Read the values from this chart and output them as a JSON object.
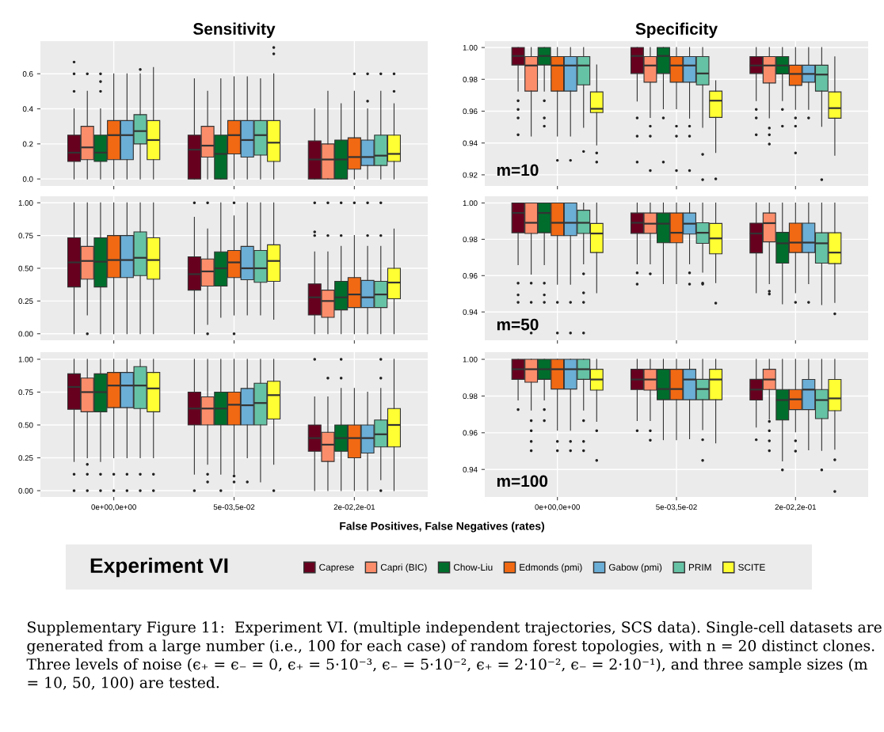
{
  "chart_data": [
    {
      "type": "box",
      "title": "Sensitivity",
      "categories": [
        null,
        null,
        null
      ],
      "tick_labels": "y",
      "grid": true,
      "ylim": [
        -0.04,
        0.786
      ],
      "yticks": [
        {
          "value": 0,
          "label": "0.0"
        },
        {
          "value": 0.2,
          "label": "0.2"
        },
        {
          "value": 0.4,
          "label": "0.4"
        },
        {
          "value": 0.6,
          "label": "0.6"
        }
      ],
      "series": [
        {
          "color": "#67001f",
          "boxes": [
            {
              "low": 0,
              "q1": 0.1,
              "median": 0.15,
              "q3": 0.25,
              "high": 0.4,
              "outliers": [
                0.5,
                0.6,
                0.667
              ]
            },
            {
              "low": 0,
              "q1": 0,
              "median": 0.167,
              "q3": 0.25,
              "high": 0.571
            },
            {
              "low": 0,
              "q1": 0,
              "median": 0.111,
              "q3": 0.217,
              "high": 0.4
            }
          ]
        },
        {
          "color": "#fc8d6b",
          "boxes": [
            {
              "low": 0,
              "q1": 0.11,
              "median": 0.18,
              "q3": 0.3,
              "high": 0.5,
              "outliers": [
                0.6
              ]
            },
            {
              "low": 0,
              "q1": 0.125,
              "median": 0.19,
              "q3": 0.3,
              "high": 0.5
            },
            {
              "low": 0,
              "q1": 0,
              "median": 0.111,
              "q3": 0.2,
              "high": 0.5
            }
          ]
        },
        {
          "color": "#006d2c",
          "boxes": [
            {
              "low": 0,
              "q1": 0.1,
              "median": 0.15,
              "q3": 0.25,
              "high": 0.4,
              "outliers": [
                0.5,
                0.556,
                0.6
              ]
            },
            {
              "low": 0,
              "q1": 0,
              "median": 0.143,
              "q3": 0.25,
              "high": 0.571
            },
            {
              "low": 0,
              "q1": 0,
              "median": 0.111,
              "q3": 0.222,
              "high": 0.429
            }
          ]
        },
        {
          "color": "#f16913",
          "boxes": [
            {
              "low": 0,
              "q1": 0.11,
              "median": 0.25,
              "q3": 0.333,
              "high": 0.6
            },
            {
              "low": 0,
              "q1": 0.143,
              "median": 0.25,
              "q3": 0.333,
              "high": 0.583
            },
            {
              "low": 0,
              "q1": 0.056,
              "median": 0.125,
              "q3": 0.235,
              "high": 0.5,
              "outliers": [
                0.6
              ]
            }
          ]
        },
        {
          "color": "#6baed6",
          "boxes": [
            {
              "low": 0,
              "q1": 0.11,
              "median": 0.25,
              "q3": 0.333,
              "high": 0.6
            },
            {
              "low": 0,
              "q1": 0.125,
              "median": 0.222,
              "q3": 0.333,
              "high": 0.583
            },
            {
              "low": 0,
              "q1": 0.077,
              "median": 0.125,
              "q3": 0.222,
              "high": 0.4,
              "outliers": [
                0.444,
                0.6
              ]
            }
          ]
        },
        {
          "color": "#66c2a4",
          "boxes": [
            {
              "low": 0,
              "q1": 0.2,
              "median": 0.273,
              "q3": 0.367,
              "high": 0.6,
              "outliers": [
                0.625
              ]
            },
            {
              "low": 0,
              "q1": 0.136,
              "median": 0.25,
              "q3": 0.333,
              "high": 0.571
            },
            {
              "low": 0,
              "q1": 0.077,
              "median": 0.133,
              "q3": 0.25,
              "high": 0.5,
              "outliers": [
                0.6
              ]
            }
          ]
        },
        {
          "color": "#ffff33",
          "boxes": [
            {
              "low": 0,
              "q1": 0.11,
              "median": 0.222,
              "q3": 0.333,
              "high": 0.636
            },
            {
              "low": 0,
              "q1": 0.1,
              "median": 0.207,
              "q3": 0.333,
              "high": 0.6,
              "outliers": [
                0.714,
                0.75
              ]
            },
            {
              "low": 0,
              "q1": 0.1,
              "median": 0.143,
              "q3": 0.25,
              "high": 0.429,
              "outliers": [
                0.5,
                0.6
              ]
            }
          ]
        }
      ]
    },
    {
      "type": "box",
      "title": "Specificity",
      "annotations": [
        "m=10"
      ],
      "categories": [
        null,
        null,
        null
      ],
      "tick_labels": "y",
      "grid": true,
      "ylim": [
        0.913,
        1.004
      ],
      "yticks": [
        {
          "value": 0.92,
          "label": "0.92"
        },
        {
          "value": 0.94,
          "label": "0.94"
        },
        {
          "value": 0.96,
          "label": "0.96"
        },
        {
          "value": 0.98,
          "label": "0.98"
        },
        {
          "value": 1,
          "label": "1.00"
        }
      ],
      "series": [
        {
          "color": "#67001f",
          "boxes": [
            {
              "low": 0.9726,
              "q1": 0.989,
              "median": 0.9947,
              "q3": 1,
              "high": 1,
              "outliers": [
                0.9666,
                0.9611,
                0.9558,
                0.9452
              ]
            },
            {
              "low": 0.9664,
              "q1": 0.9837,
              "median": 0.9947,
              "q3": 1,
              "high": 1,
              "outliers": [
                0.9558,
                0.9443,
                0.928
              ]
            },
            {
              "low": 0.9666,
              "q1": 0.9837,
              "median": 0.9887,
              "q3": 0.9943,
              "high": 1,
              "outliers": [
                0.9611,
                0.9558,
                0.9452
              ]
            }
          ]
        },
        {
          "color": "#fc8d6b",
          "boxes": [
            {
              "low": 0.9443,
              "q1": 0.9726,
              "median": 0.9887,
              "q3": 0.9943,
              "high": 1
            },
            {
              "low": 0.9561,
              "q1": 0.9782,
              "median": 0.9887,
              "q3": 0.9943,
              "high": 1,
              "outliers": [
                0.9506,
                0.9443,
                0.9227
              ]
            },
            {
              "low": 0.9558,
              "q1": 0.9777,
              "median": 0.9887,
              "q3": 0.9943,
              "high": 1,
              "outliers": [
                0.9494,
                0.9452,
                0.9394
              ]
            }
          ]
        },
        {
          "color": "#006d2c",
          "boxes": [
            {
              "low": 0.9726,
              "q1": 0.989,
              "median": 0.9947,
              "q3": 1,
              "high": 1,
              "outliers": [
                0.9666,
                0.9558,
                0.9506
              ]
            },
            {
              "low": 0.9615,
              "q1": 0.9837,
              "median": 0.9947,
              "q3": 1,
              "high": 1,
              "outliers": [
                0.9558,
                0.928
              ]
            },
            {
              "low": 0.9666,
              "q1": 0.9834,
              "median": 0.9887,
              "q3": 0.9943,
              "high": 1,
              "outliers": [
                0.9611,
                0.9506
              ]
            }
          ]
        },
        {
          "color": "#f16913",
          "boxes": [
            {
              "low": 0.9443,
              "q1": 0.9726,
              "median": 0.9887,
              "q3": 0.9943,
              "high": 1,
              "outliers": [
                0.9291
              ]
            },
            {
              "low": 0.9615,
              "q1": 0.9782,
              "median": 0.9887,
              "q3": 0.9943,
              "high": 1,
              "outliers": [
                0.9506,
                0.9443,
                0.9227
              ]
            },
            {
              "low": 0.9611,
              "q1": 0.9762,
              "median": 0.9834,
              "q3": 0.9889,
              "high": 1,
              "outliers": [
                0.9558,
                0.9506,
                0.9338
              ]
            }
          ]
        },
        {
          "color": "#6baed6",
          "boxes": [
            {
              "low": 0.9443,
              "q1": 0.9726,
              "median": 0.9887,
              "q3": 0.9943,
              "high": 1,
              "outliers": [
                0.9291
              ]
            },
            {
              "low": 0.9556,
              "q1": 0.9782,
              "median": 0.9887,
              "q3": 0.9943,
              "high": 1,
              "outliers": [
                0.9506,
                0.9443,
                0.9227
              ]
            },
            {
              "low": 0.9611,
              "q1": 0.9782,
              "median": 0.9834,
              "q3": 0.9889,
              "high": 1,
              "outliers": [
                0.9558
              ]
            }
          ]
        },
        {
          "color": "#66c2a4",
          "boxes": [
            {
              "low": 0.9498,
              "q1": 0.9765,
              "median": 0.9887,
              "q3": 0.9943,
              "high": 1,
              "outliers": [
                0.9347
              ]
            },
            {
              "low": 0.9498,
              "q1": 0.9765,
              "median": 0.9837,
              "q3": 0.9943,
              "high": 1,
              "outliers": [
                0.9329,
                0.917
              ]
            },
            {
              "low": 0.9505,
              "q1": 0.9726,
              "median": 0.983,
              "q3": 0.9889,
              "high": 1,
              "outliers": [
                0.917
              ]
            }
          ]
        },
        {
          "color": "#ffff33",
          "boxes": [
            {
              "low": 0.9388,
              "q1": 0.9591,
              "median": 0.9615,
              "q3": 0.9721,
              "high": 0.989,
              "outliers": [
                0.9338,
                0.928
              ]
            },
            {
              "low": 0.934,
              "q1": 0.9561,
              "median": 0.9666,
              "q3": 0.9726,
              "high": 0.9791,
              "outliers": [
                0.9175
              ]
            },
            {
              "low": 0.9323,
              "q1": 0.9556,
              "median": 0.9619,
              "q3": 0.9721,
              "high": 0.9942
            }
          ]
        }
      ]
    },
    {
      "type": "box",
      "categories": [
        null,
        null,
        null
      ],
      "tick_labels": "y",
      "grid": true,
      "ylim": [
        -0.05,
        1.05
      ],
      "yticks": [
        {
          "value": 0,
          "label": "0.00"
        },
        {
          "value": 0.25,
          "label": "0.25"
        },
        {
          "value": 0.5,
          "label": "0.50"
        },
        {
          "value": 0.75,
          "label": "0.75"
        },
        {
          "value": 1,
          "label": "1.00"
        }
      ],
      "series": [
        {
          "color": "#67001f",
          "boxes": [
            {
              "low": 0,
              "q1": 0.357,
              "median": 0.545,
              "q3": 0.733,
              "high": 1
            },
            {
              "low": 0,
              "q1": 0.333,
              "median": 0.455,
              "q3": 0.588,
              "high": 0.889,
              "outliers": [
                1
              ]
            },
            {
              "low": 0,
              "q1": 0.143,
              "median": 0.278,
              "q3": 0.381,
              "high": 0.625,
              "outliers": [
                0.75,
                0.778,
                1
              ]
            }
          ]
        },
        {
          "color": "#fc8d6b",
          "boxes": [
            {
              "low": 0.143,
              "q1": 0.417,
              "median": 0.556,
              "q3": 0.667,
              "high": 1,
              "outliers": [
                0
              ]
            },
            {
              "low": 0.071,
              "q1": 0.364,
              "median": 0.476,
              "q3": 0.571,
              "high": 0.8,
              "outliers": [
                0,
                1
              ]
            },
            {
              "low": 0,
              "q1": 0.125,
              "median": 0.25,
              "q3": 0.333,
              "high": 0.625,
              "outliers": [
                0.75,
                1
              ]
            }
          ]
        },
        {
          "color": "#006d2c",
          "boxes": [
            {
              "low": 0,
              "q1": 0.357,
              "median": 0.55,
              "q3": 0.733,
              "high": 1
            },
            {
              "low": 0.125,
              "q1": 0.364,
              "median": 0.5,
              "q3": 0.625,
              "high": 1
            },
            {
              "low": 0,
              "q1": 0.182,
              "median": 0.278,
              "q3": 0.4,
              "high": 0.667,
              "outliers": [
                0.75,
                1
              ]
            }
          ]
        },
        {
          "color": "#f16913",
          "boxes": [
            {
              "low": 0,
              "q1": 0.429,
              "median": 0.563,
              "q3": 0.75,
              "high": 1
            },
            {
              "low": 0.143,
              "q1": 0.429,
              "median": 0.545,
              "q3": 0.636,
              "high": 0.9,
              "outliers": [
                0,
                1
              ]
            },
            {
              "low": 0,
              "q1": 0.2,
              "median": 0.3,
              "q3": 0.429,
              "high": 0.75,
              "outliers": [
                1
              ]
            }
          ]
        },
        {
          "color": "#6baed6",
          "boxes": [
            {
              "low": 0,
              "q1": 0.429,
              "median": 0.563,
              "q3": 0.75,
              "high": 1
            },
            {
              "low": 0.143,
              "q1": 0.412,
              "median": 0.5,
              "q3": 0.667,
              "high": 1
            },
            {
              "low": 0,
              "q1": 0.2,
              "median": 0.278,
              "q3": 0.407,
              "high": 0.667,
              "outliers": [
                0.75,
                1
              ]
            }
          ]
        },
        {
          "color": "#66c2a4",
          "boxes": [
            {
              "low": 0,
              "q1": 0.444,
              "median": 0.58,
              "q3": 0.778,
              "high": 1
            },
            {
              "low": 0.143,
              "q1": 0.393,
              "median": 0.5,
              "q3": 0.636,
              "high": 1
            },
            {
              "low": 0,
              "q1": 0.2,
              "median": 0.3,
              "q3": 0.4,
              "high": 0.667,
              "outliers": [
                0.75,
                1
              ]
            }
          ]
        },
        {
          "color": "#ffff33",
          "boxes": [
            {
              "low": 0,
              "q1": 0.417,
              "median": 0.563,
              "q3": 0.733,
              "high": 1
            },
            {
              "low": 0.111,
              "q1": 0.4,
              "median": 0.556,
              "q3": 0.679,
              "high": 1
            },
            {
              "low": 0,
              "q1": 0.267,
              "median": 0.391,
              "q3": 0.5,
              "high": 0.8
            }
          ]
        }
      ]
    },
    {
      "type": "box",
      "annotations": [
        "m=50"
      ],
      "categories": [
        null,
        null,
        null
      ],
      "tick_labels": "y",
      "grid": true,
      "ylim": [
        0.9244,
        1.0037
      ],
      "yticks": [
        {
          "value": 0.94,
          "label": "0.94"
        },
        {
          "value": 0.96,
          "label": "0.96"
        },
        {
          "value": 0.98,
          "label": "0.98"
        },
        {
          "value": 1,
          "label": "1.00"
        }
      ],
      "series": [
        {
          "color": "#67001f",
          "boxes": [
            {
              "low": 0.966,
              "q1": 0.9836,
              "median": 0.9945,
              "q3": 1,
              "high": 1,
              "outliers": [
                0.9559,
                0.9494,
                0.9453
              ]
            },
            {
              "low": 0.9665,
              "q1": 0.9833,
              "median": 0.9891,
              "q3": 0.9945,
              "high": 1,
              "outliers": [
                0.9615,
                0.9553
              ]
            },
            {
              "low": 0.9506,
              "q1": 0.9725,
              "median": 0.9832,
              "q3": 0.9889,
              "high": 1
            }
          ]
        },
        {
          "color": "#fc8d6b",
          "boxes": [
            {
              "low": 0.9608,
              "q1": 0.9832,
              "median": 0.9891,
              "q3": 1,
              "high": 1,
              "outliers": [
                0.9559,
                0.9453,
                0.9284
              ]
            },
            {
              "low": 0.9665,
              "q1": 0.9833,
              "median": 0.9886,
              "q3": 0.9945,
              "high": 1,
              "outliers": [
                0.961
              ]
            },
            {
              "low": 0.9556,
              "q1": 0.9786,
              "median": 0.9889,
              "q3": 0.9945,
              "high": 1,
              "outliers": [
                0.9514,
                0.9499
              ]
            }
          ]
        },
        {
          "color": "#006d2c",
          "boxes": [
            {
              "low": 0.966,
              "q1": 0.9836,
              "median": 0.9945,
              "q3": 1,
              "high": 1,
              "outliers": [
                0.9559,
                0.9494,
                0.9453
              ]
            },
            {
              "low": 0.9556,
              "q1": 0.9781,
              "median": 0.9886,
              "q3": 0.9945,
              "high": 1
            },
            {
              "low": 0.9445,
              "q1": 0.9669,
              "median": 0.9778,
              "q3": 0.9838,
              "high": 1
            }
          ]
        },
        {
          "color": "#f16913",
          "boxes": [
            {
              "low": 0.9552,
              "q1": 0.982,
              "median": 0.9891,
              "q3": 1,
              "high": 1,
              "outliers": [
                0.9453,
                0.9284
              ]
            },
            {
              "low": 0.9556,
              "q1": 0.9781,
              "median": 0.9836,
              "q3": 0.9945,
              "high": 1
            },
            {
              "low": 0.9506,
              "q1": 0.9727,
              "median": 0.9782,
              "q3": 0.9889,
              "high": 1,
              "outliers": [
                0.9453
              ]
            }
          ]
        },
        {
          "color": "#6baed6",
          "boxes": [
            {
              "low": 0.9552,
              "q1": 0.982,
              "median": 0.9891,
              "q3": 1,
              "high": 1,
              "outliers": [
                0.9453,
                0.9284
              ]
            },
            {
              "low": 0.9665,
              "q1": 0.9829,
              "median": 0.9886,
              "q3": 0.9945,
              "high": 1,
              "outliers": [
                0.9615,
                0.9553
              ]
            },
            {
              "low": 0.9556,
              "q1": 0.9727,
              "median": 0.9782,
              "q3": 0.9889,
              "high": 1,
              "outliers": [
                0.9453
              ]
            }
          ]
        },
        {
          "color": "#66c2a4",
          "boxes": [
            {
              "low": 0.9665,
              "q1": 0.9832,
              "median": 0.9891,
              "q3": 0.996,
              "high": 1,
              "outliers": [
                0.961,
                0.9505,
                0.9453,
                0.9284
              ]
            },
            {
              "low": 0.9619,
              "q1": 0.9778,
              "median": 0.9836,
              "q3": 0.9891,
              "high": 1,
              "outliers": [
                0.9559,
                0.9553
              ]
            },
            {
              "low": 0.944,
              "q1": 0.9669,
              "median": 0.9778,
              "q3": 0.9836,
              "high": 1
            }
          ]
        },
        {
          "color": "#ffff33",
          "boxes": [
            {
              "low": 0.9506,
              "q1": 0.9727,
              "median": 0.9832,
              "q3": 0.9887,
              "high": 1
            },
            {
              "low": 0.9561,
              "q1": 0.972,
              "median": 0.9805,
              "q3": 0.9887,
              "high": 1,
              "outliers": [
                0.9449
              ]
            },
            {
              "low": 0.9452,
              "q1": 0.9666,
              "median": 0.9727,
              "q3": 0.9836,
              "high": 1,
              "outliers": [
                0.939
              ]
            }
          ]
        }
      ]
    },
    {
      "type": "box",
      "xlabel": "False Positives, False Negatives (rates)",
      "categories": [
        "0e+00,0e+00",
        "5e-03,5e-02",
        "2e-02,2e-01"
      ],
      "grid": true,
      "ylim": [
        -0.048,
        1.054
      ],
      "yticks": [
        {
          "value": 0,
          "label": "0.00"
        },
        {
          "value": 0.25,
          "label": "0.25"
        },
        {
          "value": 0.5,
          "label": "0.50"
        },
        {
          "value": 0.75,
          "label": "0.75"
        },
        {
          "value": 1,
          "label": "1.00"
        }
      ],
      "series": [
        {
          "color": "#67001f",
          "boxes": [
            {
              "low": 0.222,
              "q1": 0.619,
              "median": 0.789,
              "q3": 0.889,
              "high": 1,
              "outliers": [
                0.125,
                0
              ]
            },
            {
              "low": 0.125,
              "q1": 0.5,
              "median": 0.625,
              "q3": 0.75,
              "high": 1,
              "outliers": [
                0
              ]
            },
            {
              "low": 0,
              "q1": 0.3,
              "median": 0.4,
              "q3": 0.5,
              "high": 0.714,
              "outliers": [
                1
              ]
            }
          ]
        },
        {
          "color": "#fc8d6b",
          "boxes": [
            {
              "low": 0.25,
              "q1": 0.6,
              "median": 0.75,
              "q3": 0.857,
              "high": 1,
              "outliers": [
                0.2,
                0.125,
                0
              ]
            },
            {
              "low": 0.2,
              "q1": 0.5,
              "median": 0.625,
              "q3": 0.714,
              "high": 1,
              "outliers": [
                0.125,
                0.067
              ]
            },
            {
              "low": 0,
              "q1": 0.222,
              "median": 0.35,
              "q3": 0.444,
              "high": 0.714,
              "outliers": [
                0.857
              ]
            }
          ]
        },
        {
          "color": "#006d2c",
          "boxes": [
            {
              "low": 0.222,
              "q1": 0.6,
              "median": 0.75,
              "q3": 0.889,
              "high": 1,
              "outliers": [
                0.125,
                0
              ]
            },
            {
              "low": 0.125,
              "q1": 0.5,
              "median": 0.625,
              "q3": 0.75,
              "high": 1,
              "outliers": [
                0
              ]
            },
            {
              "low": 0,
              "q1": 0.3,
              "median": 0.4,
              "q3": 0.5,
              "high": 0.778,
              "outliers": [
                0.857,
                1
              ]
            }
          ]
        },
        {
          "color": "#f16913",
          "boxes": [
            {
              "low": 0.25,
              "q1": 0.632,
              "median": 0.8,
              "q3": 0.9,
              "high": 1,
              "outliers": [
                0.125,
                0
              ]
            },
            {
              "low": 0.125,
              "q1": 0.5,
              "median": 0.654,
              "q3": 0.75,
              "high": 1,
              "outliers": [
                0.111,
                0.067
              ]
            },
            {
              "low": 0,
              "q1": 0.25,
              "median": 0.4,
              "q3": 0.5,
              "high": 0.778
            }
          ]
        },
        {
          "color": "#6baed6",
          "boxes": [
            {
              "low": 0.25,
              "q1": 0.632,
              "median": 0.8,
              "q3": 0.9,
              "high": 1,
              "outliers": [
                0.125,
                0
              ]
            },
            {
              "low": 0.25,
              "q1": 0.5,
              "median": 0.65,
              "q3": 0.778,
              "high": 1,
              "outliers": [
                0.067
              ]
            },
            {
              "low": 0,
              "q1": 0.286,
              "median": 0.4,
              "q3": 0.5,
              "high": 0.75
            }
          ]
        },
        {
          "color": "#66c2a4",
          "boxes": [
            {
              "low": 0.25,
              "q1": 0.625,
              "median": 0.8,
              "q3": 0.944,
              "high": 1,
              "outliers": [
                0.125,
                0
              ]
            },
            {
              "low": 0.067,
              "q1": 0.5,
              "median": 0.667,
              "q3": 0.818,
              "high": 1
            },
            {
              "low": 0.083,
              "q1": 0.333,
              "median": 0.429,
              "q3": 0.538,
              "high": 0.778,
              "outliers": [
                0,
                0.857,
                1
              ]
            }
          ]
        },
        {
          "color": "#ffff33",
          "boxes": [
            {
              "low": 0.25,
              "q1": 0.6,
              "median": 0.778,
              "q3": 0.9,
              "high": 1,
              "outliers": [
                0.125,
                0
              ]
            },
            {
              "low": 0.2,
              "q1": 0.545,
              "median": 0.727,
              "q3": 0.833,
              "high": 1,
              "outliers": [
                0
              ]
            },
            {
              "low": 0,
              "q1": 0.333,
              "median": 0.5,
              "q3": 0.625,
              "high": 1
            }
          ]
        }
      ]
    },
    {
      "type": "box",
      "annotations": [
        "m=100",
        "Supplementary Figure 11:  Experiment VI. (multiple independent trajectories, SCS data). Single-cell datasets are generated from a large number (i.e., 100 for each case) of random forest topologies, with n = 20 distinct clones. Three levels of noise (ϵ₊ = ϵ₋ = 0, ϵ₊ = 5·10⁻³, ϵ₋ = 5·10⁻², ϵ₊ = 2·10⁻², ϵ₋ = 2·10⁻¹), and three sample sizes (m = 10, 50, 100) are tested."
      ],
      "categories": [
        "0e+00,0e+00",
        "5e-03,5e-02",
        "2e-02,2e-01"
      ],
      "grid": true,
      "legend": "bottom",
      "legend_title": "Experiment VI",
      "ylim": [
        0.925,
        1.0039
      ],
      "yticks": [
        {
          "value": 0.94,
          "label": "0.94"
        },
        {
          "value": 0.96,
          "label": "0.96"
        },
        {
          "value": 0.98,
          "label": "0.98"
        },
        {
          "value": 1,
          "label": "1.00"
        }
      ],
      "series": [
        {
          "name": "Caprese",
          "color": "#67001f",
          "boxes": [
            {
              "low": 0.9778,
              "q1": 0.9891,
              "median": 0.9946,
              "q3": 1,
              "high": 1,
              "outliers": [
                0.9726
              ]
            },
            {
              "low": 0.9666,
              "q1": 0.9835,
              "median": 0.989,
              "q3": 0.9946,
              "high": 1,
              "outliers": [
                0.9611
              ]
            },
            {
              "low": 0.9631,
              "q1": 0.9778,
              "median": 0.9835,
              "q3": 0.9891,
              "high": 1,
              "outliers": [
                0.9562
              ]
            }
          ]
        },
        {
          "name": "Capri (BIC)",
          "color": "#fc8d6b",
          "boxes": [
            {
              "low": 0.9723,
              "q1": 0.9875,
              "median": 0.9946,
              "q3": 1,
              "high": 1,
              "outliers": [
                0.9666,
                0.9611,
                0.9553,
                0.9502
              ]
            },
            {
              "low": 0.9666,
              "q1": 0.9832,
              "median": 0.989,
              "q3": 0.9946,
              "high": 1,
              "outliers": [
                0.9611,
                0.9559
              ]
            },
            {
              "low": 0.9674,
              "q1": 0.9835,
              "median": 0.989,
              "q3": 0.9946,
              "high": 1,
              "outliers": [
                0.9662,
                0.9611,
                0.9556,
                0.9502
              ]
            }
          ]
        },
        {
          "name": "Chow-Liu",
          "color": "#006d2c",
          "boxes": [
            {
              "low": 0.9778,
              "q1": 0.9891,
              "median": 0.9946,
              "q3": 1,
              "high": 1,
              "outliers": [
                0.9726,
                0.9666
              ]
            },
            {
              "low": 0.9562,
              "q1": 0.978,
              "median": 0.9838,
              "q3": 0.9946,
              "high": 1
            },
            {
              "low": 0.9446,
              "q1": 0.9669,
              "median": 0.9778,
              "q3": 0.9835,
              "high": 1,
              "outliers": [
                0.9398
              ]
            }
          ]
        },
        {
          "name": "Edmonds (pmi)",
          "color": "#f16913",
          "boxes": [
            {
              "low": 0.9614,
              "q1": 0.9838,
              "median": 0.9946,
              "q3": 1,
              "high": 1,
              "outliers": [
                0.9553,
                0.9502
              ]
            },
            {
              "low": 0.9562,
              "q1": 0.978,
              "median": 0.9838,
              "q3": 0.9946,
              "high": 1
            },
            {
              "low": 0.9605,
              "q1": 0.9726,
              "median": 0.9782,
              "q3": 0.9835,
              "high": 1,
              "outliers": [
                0.9556,
                0.95
              ]
            }
          ]
        },
        {
          "name": "Gabow (pmi)",
          "color": "#6baed6",
          "boxes": [
            {
              "low": 0.9614,
              "q1": 0.9838,
              "median": 0.9946,
              "q3": 1,
              "high": 1,
              "outliers": [
                0.9553,
                0.9502
              ]
            },
            {
              "low": 0.9567,
              "q1": 0.978,
              "median": 0.989,
              "q3": 0.9946,
              "high": 1
            },
            {
              "low": 0.9507,
              "q1": 0.9726,
              "median": 0.9835,
              "q3": 0.989,
              "high": 1
            }
          ]
        },
        {
          "name": "PRIM",
          "color": "#66c2a4",
          "boxes": [
            {
              "low": 0.9723,
              "q1": 0.9891,
              "median": 0.9946,
              "q3": 1,
              "high": 1,
              "outliers": [
                0.9666,
                0.9553,
                0.9502
              ]
            },
            {
              "low": 0.9617,
              "q1": 0.978,
              "median": 0.9838,
              "q3": 0.9891,
              "high": 1,
              "outliers": [
                0.9562,
                0.9449
              ]
            },
            {
              "low": 0.9503,
              "q1": 0.9677,
              "median": 0.9778,
              "q3": 0.9835,
              "high": 1,
              "outliers": [
                0.9398
              ]
            }
          ]
        },
        {
          "name": "SCITE",
          "color": "#ffff33",
          "boxes": [
            {
              "low": 0.9662,
              "q1": 0.9832,
              "median": 0.989,
              "q3": 0.9946,
              "high": 1,
              "outliers": [
                0.9611,
                0.9449
              ]
            },
            {
              "low": 0.9544,
              "q1": 0.978,
              "median": 0.989,
              "q3": 0.9946,
              "high": 1
            },
            {
              "low": 0.951,
              "q1": 0.972,
              "median": 0.9787,
              "q3": 0.989,
              "high": 1,
              "outliers": [
                0.9453,
                0.928
              ]
            }
          ]
        }
      ]
    }
  ]
}
